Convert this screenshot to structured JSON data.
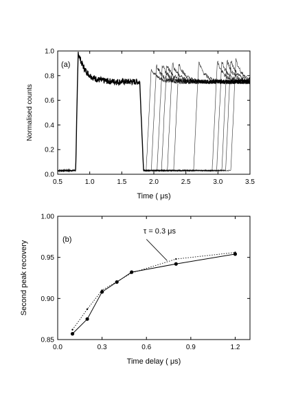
{
  "chart_data": [
    {
      "panel_label": "(a)",
      "type": "line",
      "xlabel": "Time ( μs)",
      "ylabel": "Normalised counts",
      "xlim": [
        0.5,
        3.5
      ],
      "ylim": [
        0.0,
        1.0
      ],
      "x_ticks": [
        0.5,
        1.0,
        1.5,
        2.0,
        2.5,
        3.0,
        3.5
      ],
      "x_tick_labels": [
        "0.5",
        "1.0",
        "1.5",
        "2.0",
        "2.5",
        "3.0",
        "3.5"
      ],
      "y_ticks": [
        0.0,
        0.2,
        0.4,
        0.6,
        0.8,
        1.0
      ],
      "y_tick_labels": [
        "0.0",
        "0.2",
        "0.4",
        "0.6",
        "0.8",
        "1.0"
      ],
      "grid": false,
      "description_series": {
        "first_pulse_rise": 0.78,
        "first_pulse_fall": 1.78,
        "baseline": 0.03,
        "peak": 0.99,
        "plateau": 0.75,
        "second_pulse_rise_times": [
          1.88,
          1.96,
          2.05,
          2.12,
          2.21,
          2.31,
          2.62,
          2.91,
          2.98,
          3.06,
          3.12,
          3.2
        ],
        "second_pulse_peaks": [
          0.86,
          0.88,
          0.89,
          0.89,
          0.9,
          0.9,
          0.91,
          0.92,
          0.92,
          0.93,
          0.93,
          0.93
        ]
      }
    },
    {
      "panel_label": "(b)",
      "type": "line",
      "xlabel": "Time delay ( μs)",
      "ylabel": "Second peak recovery",
      "xlim": [
        0.0,
        1.3
      ],
      "ylim": [
        0.85,
        1.0
      ],
      "x_ticks": [
        0.0,
        0.3,
        0.6,
        0.9,
        1.2
      ],
      "x_tick_labels": [
        "0.0",
        "0.3",
        "0.6",
        "0.9",
        "1.2"
      ],
      "y_ticks": [
        0.85,
        0.9,
        0.95,
        1.0
      ],
      "y_tick_labels": [
        "0.85",
        "0.90",
        "0.95",
        "1.00"
      ],
      "grid": false,
      "annotation": "τ = 0.3  μs",
      "series": [
        {
          "style": "solid-markers",
          "x": [
            0.1,
            0.2,
            0.3,
            0.4,
            0.5,
            0.8,
            1.2
          ],
          "y": [
            0.857,
            0.875,
            0.908,
            0.92,
            0.932,
            0.942,
            0.954
          ]
        },
        {
          "style": "dotted-fit",
          "x": [
            0.1,
            0.2,
            0.3,
            0.5,
            0.8,
            1.2
          ],
          "y": [
            0.862,
            0.887,
            0.91,
            0.931,
            0.948,
            0.956
          ]
        }
      ]
    }
  ]
}
